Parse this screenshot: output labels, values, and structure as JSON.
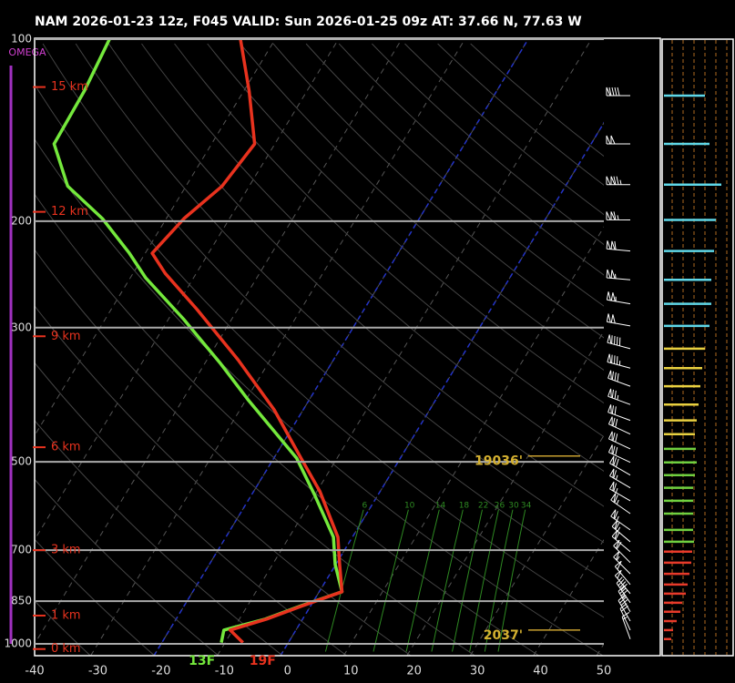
{
  "header": "NAM 2026-01-23 12z, F045  VALID: Sun 2026-01-25 09z  AT: 37.66 N, 77.63 W",
  "chart_data": {
    "type": "skewt",
    "omega_label": "OMEGA",
    "xlim": [
      -40,
      50
    ],
    "xticks": [
      -40,
      -30,
      -20,
      -10,
      0,
      10,
      20,
      30,
      40,
      50
    ],
    "ylim": [
      1000,
      100
    ],
    "yticks": [
      100,
      200,
      300,
      500,
      700,
      850,
      1000
    ],
    "y_log": true,
    "highlight_isotherms": [
      -20,
      0
    ],
    "highlight_color": "#2333c8",
    "temperature": {
      "color": "#e8321e",
      "surface_label": "19F",
      "pressure": [
        100,
        122,
        149,
        175,
        198,
        226,
        244,
        280,
        339,
        410,
        493,
        560,
        666,
        739,
        820,
        865,
        910,
        949,
        995
      ],
      "values": [
        -65.5,
        -59.1,
        -53.2,
        -54.3,
        -57.2,
        -58.9,
        -54.9,
        -46.4,
        -35.1,
        -24.6,
        -15.7,
        -9.5,
        -2.3,
        0.6,
        3.6,
        -1.3,
        -5.7,
        -10.4,
        -7.2
      ]
    },
    "dewpoint": {
      "color": "#74e83c",
      "surface_label": "13F",
      "pressure": [
        100,
        122,
        149,
        175,
        198,
        226,
        248,
        290,
        344,
        396,
        493,
        570,
        666,
        739,
        820,
        865,
        910,
        949,
        995
      ],
      "values": [
        -86.2,
        -85.2,
        -84.9,
        -78.7,
        -70.1,
        -62.5,
        -57.6,
        -47.7,
        -37.5,
        -29.5,
        -16.4,
        -9.8,
        -3.0,
        -0.1,
        3.6,
        -1.5,
        -5.9,
        -11.4,
        -10.6
      ]
    },
    "mixing_ratio": {
      "color": "#2e8a22",
      "values": [
        6,
        10,
        14,
        18,
        22,
        26,
        30,
        34
      ]
    },
    "height_labels": [
      {
        "value": 120,
        "label": "15 km"
      },
      {
        "value": 193,
        "label": "12 km"
      },
      {
        "value": 310,
        "label": "9 km"
      },
      {
        "value": 473,
        "label": "6 km"
      },
      {
        "value": 700,
        "label": "3 km"
      },
      {
        "value": 898,
        "label": "1 km"
      },
      {
        "value": 1020,
        "label": "0 km"
      }
    ],
    "annotations": [
      {
        "text": "19036'",
        "pressure": 489
      },
      {
        "text": "2037'",
        "pressure": 949
      }
    ],
    "wind": {
      "pressure": [
        124,
        149,
        174,
        199,
        224,
        250,
        274,
        298,
        325,
        350,
        375,
        402,
        427,
        450,
        476,
        501,
        526,
        552,
        580,
        609,
        648,
        678,
        704,
        734,
        766,
        798,
        826,
        855,
        885,
        917,
        949,
        982
      ],
      "direction": [
        270,
        270,
        270,
        270,
        275,
        275,
        280,
        280,
        285,
        285,
        290,
        290,
        290,
        295,
        295,
        295,
        300,
        300,
        300,
        305,
        305,
        310,
        310,
        315,
        315,
        320,
        320,
        325,
        330,
        330,
        335,
        340
      ],
      "speed": [
        90,
        100,
        126,
        114,
        110,
        104,
        104,
        100,
        90,
        84,
        80,
        76,
        72,
        68,
        70,
        72,
        68,
        64,
        64,
        64,
        64,
        66,
        62,
        60,
        56,
        52,
        48,
        40,
        36,
        28,
        20,
        16
      ],
      "colors": [
        "#5fd8e8",
        "#5fd8e8",
        "#5fd8e8",
        "#5fd8e8",
        "#5fd8e8",
        "#5fd8e8",
        "#5fd8e8",
        "#5fd8e8",
        "#e8d040",
        "#e8d040",
        "#e8d040",
        "#e8d040",
        "#e8d040",
        "#e8d040",
        "#70d040",
        "#70d040",
        "#70d040",
        "#70d040",
        "#70d040",
        "#70d040",
        "#70d040",
        "#70d040",
        "#e83a2a",
        "#e83a2a",
        "#e83a2a",
        "#e83a2a",
        "#e83a2a",
        "#e83a2a",
        "#e83a2a",
        "#e83a2a",
        "#e83a2a",
        "#e83a2a"
      ]
    }
  }
}
